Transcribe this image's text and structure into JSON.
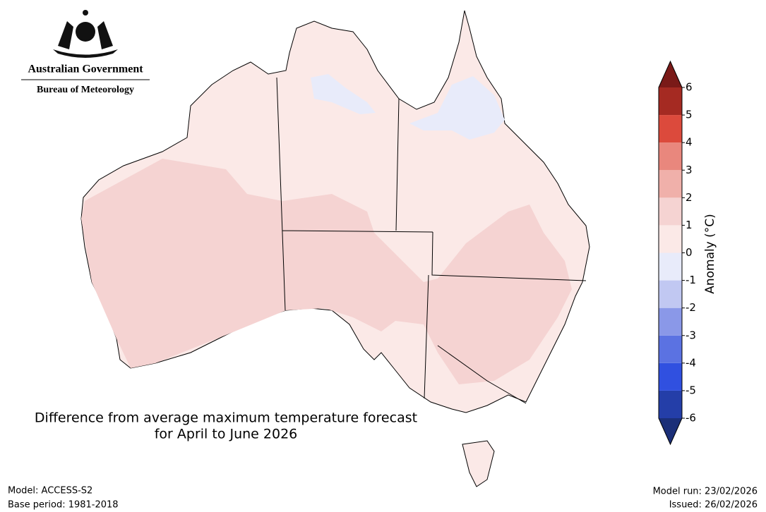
{
  "header": {
    "government": "Australian Government",
    "agency": "Bureau of Meteorology"
  },
  "title_lines": [
    "Difference from average maximum temperature forecast",
    "for April to June 2026"
  ],
  "colorbar": {
    "label": "Anomaly (°C)",
    "lim": [
      -6,
      6
    ],
    "ticks": [
      -6,
      -5,
      -4,
      -3,
      -2,
      -1,
      0,
      1,
      2,
      3,
      4,
      5,
      6
    ],
    "colors": [
      "#243ea8",
      "#3050e0",
      "#5b72e2",
      "#8a98e8",
      "#c1c8f2",
      "#e8ebfa",
      "#fbe9e7",
      "#f5d3d2",
      "#f0b0aa",
      "#e9877d",
      "#dc4a3c",
      "#a52a22"
    ],
    "under_color": "#1b2f78",
    "over_color": "#7a1a18"
  },
  "footer": {
    "model": "Model: ACCESS-S2",
    "base_period": "Base period: 1981-2018",
    "model_run": "Model run: 23/02/2026",
    "issued": "Issued: 26/02/2026"
  }
}
